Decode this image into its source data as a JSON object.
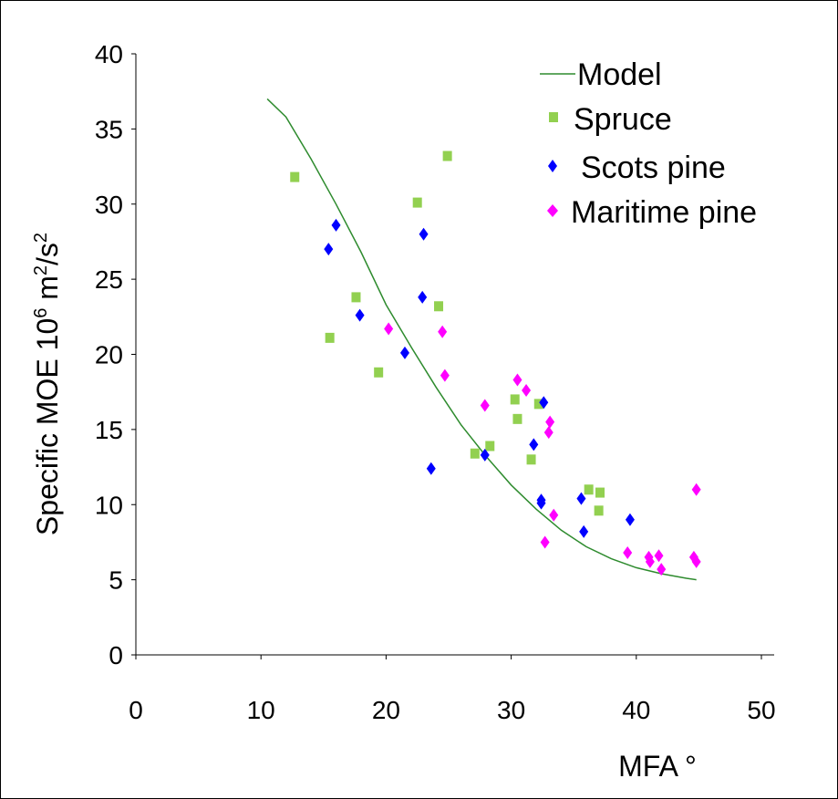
{
  "chart_data": {
    "type": "scatter",
    "xlabel": "MFA °",
    "ylabel_main": "Specific MOE 10",
    "ylabel_sup1": "6",
    "ylabel_unit": " m",
    "ylabel_sup2": "2",
    "ylabel_tail": "/s",
    "ylabel_sup3": "2",
    "xlim": [
      0,
      50
    ],
    "ylim": [
      0,
      40
    ],
    "x_ticks": [
      "0",
      "10",
      "20",
      "30",
      "40",
      "50"
    ],
    "y_ticks": [
      "0",
      "5",
      "10",
      "15",
      "20",
      "25",
      "30",
      "35",
      "40"
    ],
    "grid": false,
    "legend_position": "top-right",
    "series": [
      {
        "name": "Model",
        "kind": "line",
        "color": "#2e8b2e",
        "points": [
          [
            10.5,
            37.0
          ],
          [
            12,
            35.8
          ],
          [
            14,
            33.0
          ],
          [
            16,
            30.0
          ],
          [
            18,
            26.8
          ],
          [
            20,
            23.3
          ],
          [
            22,
            20.5
          ],
          [
            24,
            17.8
          ],
          [
            26,
            15.3
          ],
          [
            28,
            13.2
          ],
          [
            30,
            11.3
          ],
          [
            32,
            9.7
          ],
          [
            34,
            8.3
          ],
          [
            36,
            7.2
          ],
          [
            38,
            6.4
          ],
          [
            40,
            5.8
          ],
          [
            42,
            5.4
          ],
          [
            44,
            5.1
          ],
          [
            44.8,
            5.0
          ]
        ]
      },
      {
        "name": "Spruce",
        "kind": "square",
        "color": "#92d050",
        "points": [
          [
            12.7,
            31.8
          ],
          [
            15.5,
            21.1
          ],
          [
            17.6,
            23.8
          ],
          [
            19.4,
            18.8
          ],
          [
            22.5,
            30.1
          ],
          [
            24.2,
            23.2
          ],
          [
            24.9,
            33.2
          ],
          [
            27.1,
            13.4
          ],
          [
            28.3,
            13.9
          ],
          [
            30.3,
            17.0
          ],
          [
            30.5,
            15.7
          ],
          [
            31.6,
            13.0
          ],
          [
            32.2,
            16.7
          ],
          [
            36.2,
            11.0
          ],
          [
            37.0,
            9.6
          ],
          [
            37.1,
            10.8
          ]
        ]
      },
      {
        "name": "Scots pine",
        "kind": "diamond",
        "color": "#0000ff",
        "points": [
          [
            15.4,
            27.0
          ],
          [
            16.0,
            28.6
          ],
          [
            17.9,
            22.6
          ],
          [
            21.5,
            20.1
          ],
          [
            22.9,
            23.8
          ],
          [
            23.0,
            28.0
          ],
          [
            23.6,
            12.4
          ],
          [
            27.9,
            13.3
          ],
          [
            31.8,
            14.0
          ],
          [
            32.4,
            10.3
          ],
          [
            32.4,
            10.1
          ],
          [
            32.6,
            16.8
          ],
          [
            35.6,
            10.4
          ],
          [
            35.8,
            8.2
          ],
          [
            39.5,
            9.0
          ]
        ]
      },
      {
        "name": "Maritime pine",
        "kind": "diamond",
        "color": "#ff00ff",
        "points": [
          [
            20.2,
            21.7
          ],
          [
            24.5,
            21.5
          ],
          [
            24.7,
            18.6
          ],
          [
            27.9,
            16.6
          ],
          [
            30.5,
            18.3
          ],
          [
            31.2,
            17.6
          ],
          [
            32.7,
            7.5
          ],
          [
            33.0,
            14.8
          ],
          [
            33.1,
            15.5
          ],
          [
            33.4,
            9.3
          ],
          [
            39.3,
            6.8
          ],
          [
            41.0,
            6.5
          ],
          [
            41.1,
            6.2
          ],
          [
            41.8,
            6.6
          ],
          [
            42.0,
            5.7
          ],
          [
            44.6,
            6.5
          ],
          [
            44.8,
            6.2
          ],
          [
            44.8,
            11.0
          ]
        ]
      }
    ]
  }
}
